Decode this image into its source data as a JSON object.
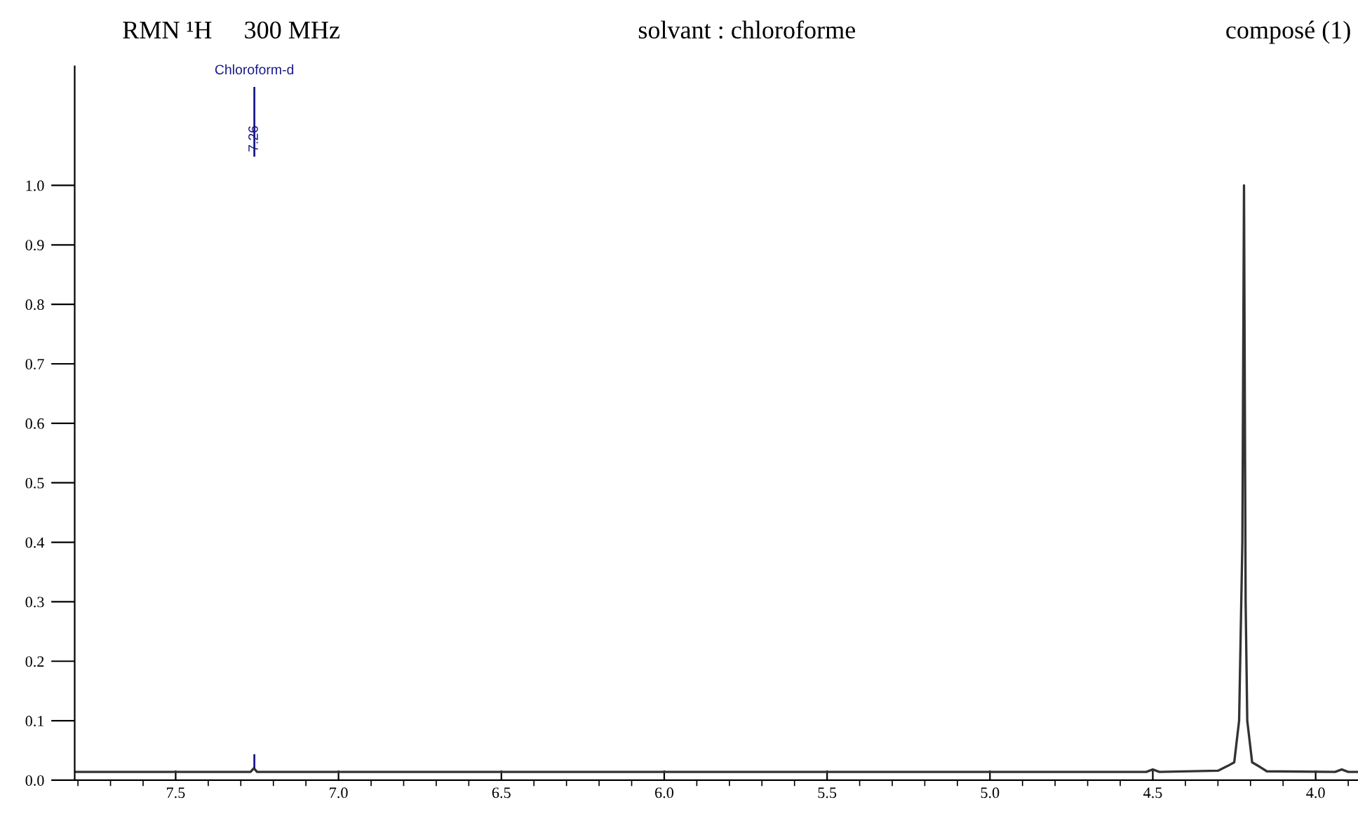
{
  "chart_data": {
    "type": "line",
    "title": "RMN ¹H     300 MHz",
    "annotations": [
      "solvant : chloroforme",
      "composé (1)",
      "Chloroform-d",
      "7.26"
    ],
    "series": [
      {
        "color": "#333333",
        "x": [
          7.81,
          7.27,
          7.26,
          7.25,
          5.0,
          4.52,
          4.5,
          4.48,
          4.3,
          4.27,
          4.25,
          4.235,
          4.225,
          4.22,
          4.215,
          4.21,
          4.195,
          4.17,
          4.15,
          3.94,
          3.92,
          3.9,
          3.87
        ],
        "values": [
          0.014,
          0.014,
          0.02,
          0.014,
          0.014,
          0.014,
          0.018,
          0.014,
          0.016,
          0.024,
          0.03,
          0.1,
          0.4,
          1.0,
          0.3,
          0.1,
          0.03,
          0.022,
          0.015,
          0.014,
          0.018,
          0.014,
          0.014
        ]
      }
    ],
    "xlim": [
      7.81,
      3.87
    ],
    "ylim": [
      0,
      1.2
    ],
    "xticks": [
      {
        "value": 7.5,
        "label": "7.5"
      },
      {
        "value": 7.0,
        "label": "7.0"
      },
      {
        "value": 6.5,
        "label": "6.5"
      },
      {
        "value": 6.0,
        "label": "6.0"
      },
      {
        "value": 5.5,
        "label": "5.5"
      },
      {
        "value": 5.0,
        "label": "5.0"
      },
      {
        "value": 4.5,
        "label": "4.5"
      },
      {
        "value": 4.0,
        "label": "4.0"
      }
    ],
    "yticks": [
      {
        "value": 0,
        "label": "0.0"
      },
      {
        "value": 0.1,
        "label": "0.1"
      },
      {
        "value": 0.2,
        "label": "0.2"
      },
      {
        "value": 0.3,
        "label": "0.3"
      },
      {
        "value": 0.4,
        "label": "0.4"
      },
      {
        "value": 0.5,
        "label": "0.5"
      },
      {
        "value": 0.6,
        "label": "0.6"
      },
      {
        "value": 0.7,
        "label": "0.7"
      },
      {
        "value": 0.8,
        "label": "0.8"
      },
      {
        "value": 0.9,
        "label": "0.9"
      },
      {
        "value": 1.0,
        "label": "1.0"
      }
    ],
    "grid": false,
    "legend": false,
    "marker": "none",
    "line_style": "solid"
  }
}
